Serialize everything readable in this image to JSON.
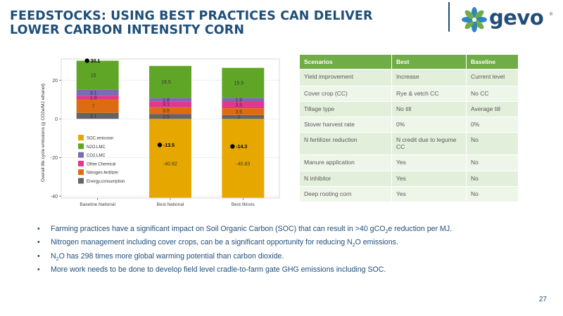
{
  "slide": {
    "title_line1": "FEEDSTOCKS: USING BEST PRACTICES CAN DELIVER",
    "title_line2": "LOWER CARBON INTENSITY CORN",
    "logo_text": "gevo",
    "logo_tm": "®",
    "page_number": "27",
    "colors": {
      "title": "#1f4e79",
      "accent": "#70ad47"
    }
  },
  "chart_data": {
    "type": "bar",
    "stacked": true,
    "ylabel": "Overall life cycle emissions (g CO2e/MJ ethanol)",
    "xlabel": "",
    "ylim": [
      -41,
      31
    ],
    "yticks": [
      20,
      0,
      -20,
      -40
    ],
    "yticks_labels": [
      "20",
      "0",
      "-20",
      "-40"
    ],
    "grid": true,
    "legend_position": "inside-lower-left",
    "categories": [
      "Baseline.National",
      "Best.National",
      "Best.Illinois"
    ],
    "series": [
      {
        "name": "SOC.emission",
        "color": "#e6a800",
        "values": [
          0,
          -40.82,
          -40.83
        ],
        "labels": [
          "",
          "-40.82",
          "-40.83"
        ]
      },
      {
        "name": "N2O.LMC",
        "color": "#5fa526",
        "values": [
          15,
          16.5,
          15.5
        ],
        "labels": [
          "15",
          "16.5",
          "15.5"
        ]
      },
      {
        "name": "CO2.LMC",
        "color": "#7b6bb0",
        "values": [
          3.1,
          1.8,
          1.9
        ],
        "labels": [
          "3.1",
          "1.8",
          "1.9"
        ]
      },
      {
        "name": "Other.Chemical",
        "color": "#e0388c",
        "values": [
          1.9,
          3.1,
          3.5
        ],
        "labels": [
          "1.9",
          "3.1",
          "3.5"
        ]
      },
      {
        "name": "Nitrogen.fertilizer",
        "color": "#dd6b12",
        "values": [
          7,
          3.5,
          3.5
        ],
        "labels": [
          "7",
          "3.5",
          "3.5"
        ]
      },
      {
        "name": "Energy.consumption",
        "color": "#646464",
        "values": [
          3.1,
          2.5,
          2
        ],
        "labels": [
          "3.1",
          "2.5",
          "2"
        ]
      }
    ],
    "stack_order_positive": [
      "Energy.consumption",
      "Nitrogen.fertilizer",
      "Other.Chemical",
      "CO2.LMC",
      "N2O.LMC"
    ],
    "totals": [
      30.1,
      -13.5,
      -14.3
    ],
    "totals_labels": [
      "30.1",
      "-13.5",
      "-14.3"
    ]
  },
  "table": {
    "headers": [
      "Scenarios",
      "Best",
      "Baseline"
    ],
    "rows": [
      [
        "Yield improvement",
        "Increase",
        "Current level"
      ],
      [
        "Cover crop (CC)",
        "Rye & vetch CC",
        "No CC"
      ],
      [
        "Tillage type",
        "No till",
        "Average till"
      ],
      [
        "Stover harvest rate",
        "0%",
        "0%"
      ],
      [
        "N fertilizer reduction",
        "N credit due to legume CC",
        "No"
      ],
      [
        "Manure application",
        "Yes",
        "No"
      ],
      [
        "N inhibitor",
        "Yes",
        "No"
      ],
      [
        "Deep rooting corn",
        "Yes",
        "No"
      ]
    ]
  },
  "bullets": {
    "marker": "•",
    "b1_pre": "Farming practices have a significant impact on Soil Organic Carbon (SOC) that can result in >40 gCO",
    "b1_sub": "2",
    "b1_post": "e reduction per MJ.",
    "b2_pre": "Nitrogen management including cover crops, can be a significant opportunity for reducing N",
    "b2_sub": "2",
    "b2_post": "O emissions.",
    "b3_pre": "N",
    "b3_sub": "2",
    "b3_post": "O has 298 times more global warming potential than carbon dioxide.",
    "b4": "More work needs to be done to develop field level cradle-to-farm gate GHG emissions including SOC."
  }
}
